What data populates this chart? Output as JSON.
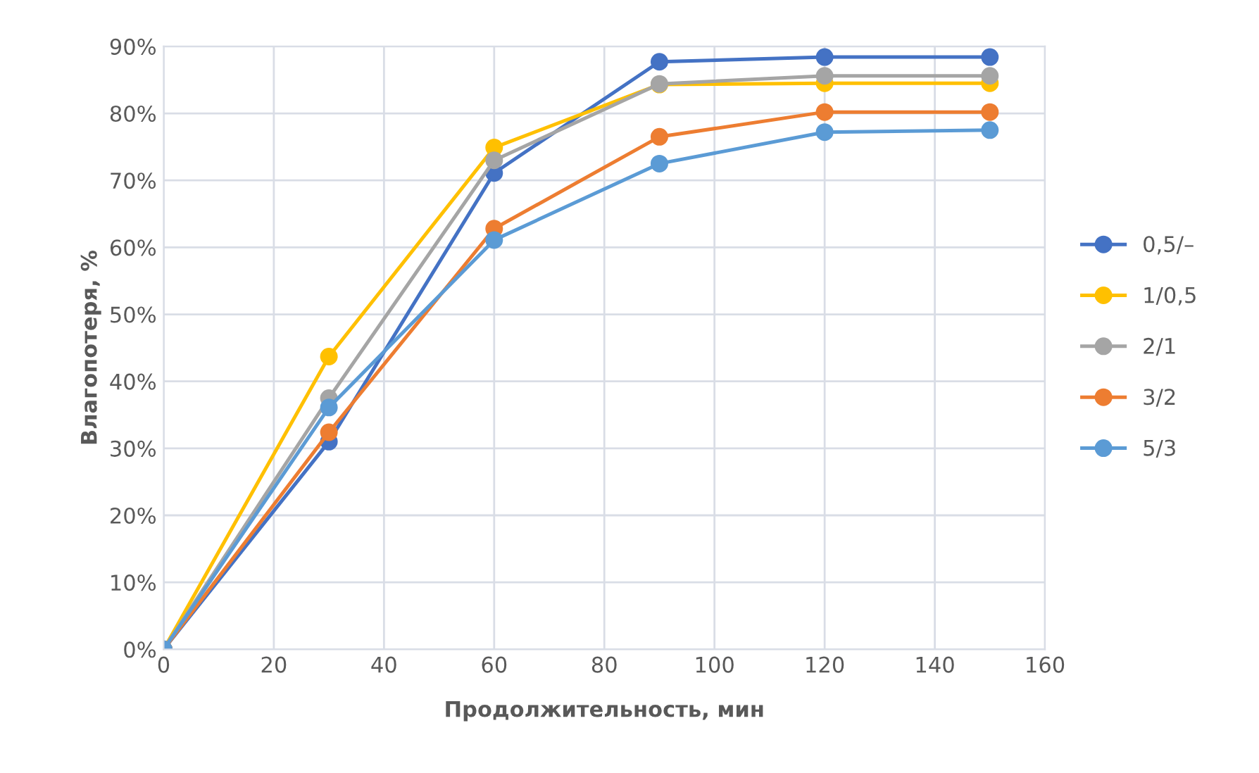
{
  "chart_data": {
    "type": "line",
    "xlabel": "Продолжительность, мин",
    "ylabel": "Влагопотеря, %",
    "x": [
      0,
      30,
      60,
      90,
      120,
      150
    ],
    "series": [
      {
        "name": "0,5/–",
        "color": "#4472c4",
        "values": [
          0,
          31.0,
          71.1,
          87.7,
          88.4,
          88.4
        ]
      },
      {
        "name": "1/0,5",
        "color": "#ffc000",
        "values": [
          0,
          43.7,
          74.9,
          84.3,
          84.5,
          84.5
        ]
      },
      {
        "name": "2/1",
        "color": "#a5a5a5",
        "values": [
          0,
          37.5,
          73.0,
          84.4,
          85.6,
          85.6
        ]
      },
      {
        "name": "3/2",
        "color": "#ed7d31",
        "values": [
          0,
          32.4,
          62.8,
          76.5,
          80.2,
          80.2
        ]
      },
      {
        "name": "5/3",
        "color": "#5b9bd5",
        "values": [
          0,
          36.1,
          61.1,
          72.5,
          77.2,
          77.5
        ]
      }
    ],
    "xlim": [
      0,
      160
    ],
    "xticks": [
      0,
      20,
      40,
      60,
      80,
      100,
      120,
      140,
      160
    ],
    "ylim": [
      0,
      90
    ],
    "yticks": [
      {
        "value": 0,
        "label": "0%"
      },
      {
        "value": 10,
        "label": "10%"
      },
      {
        "value": 20,
        "label": "20%"
      },
      {
        "value": 30,
        "label": "30%"
      },
      {
        "value": 40,
        "label": "40%"
      },
      {
        "value": 50,
        "label": "50%"
      },
      {
        "value": 60,
        "label": "60%"
      },
      {
        "value": 70,
        "label": "70%"
      },
      {
        "value": 80,
        "label": "80%"
      },
      {
        "value": 90,
        "label": "90%"
      }
    ],
    "grid": true,
    "legend": "right",
    "marker": "circle",
    "line_style": "solid"
  }
}
